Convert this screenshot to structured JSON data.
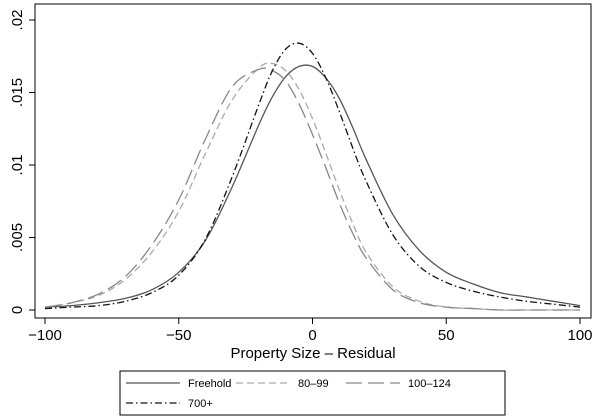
{
  "chart_data": {
    "type": "line",
    "title": "",
    "xlabel": "Property Size – Residual",
    "ylabel": "",
    "xlim": [
      -100,
      100
    ],
    "ylim": [
      0,
      0.02
    ],
    "x_ticks": [
      -100,
      -50,
      0,
      50,
      100
    ],
    "x_tick_labels": [
      "−100",
      "−50",
      "0",
      "50",
      "100"
    ],
    "y_ticks": [
      0,
      0.005,
      0.01,
      0.015,
      0.02
    ],
    "y_tick_labels": [
      "0",
      ".005",
      ".01",
      ".015",
      ".02"
    ],
    "grid": false,
    "legend_position": "bottom",
    "x": [
      -100,
      -90,
      -80,
      -70,
      -60,
      -50,
      -40,
      -30,
      -20,
      -15,
      -10,
      -5,
      0,
      5,
      10,
      15,
      20,
      30,
      40,
      50,
      60,
      70,
      80,
      90,
      100
    ],
    "series": [
      {
        "name": "Freehold",
        "color": "#555555",
        "dash": "solid",
        "values": [
          0.0002,
          0.0003,
          0.0005,
          0.0008,
          0.0014,
          0.0026,
          0.0048,
          0.0085,
          0.0128,
          0.0147,
          0.0161,
          0.0168,
          0.0168,
          0.016,
          0.0146,
          0.0126,
          0.0104,
          0.0066,
          0.0041,
          0.0026,
          0.0018,
          0.0012,
          0.0009,
          0.0006,
          0.0003
        ]
      },
      {
        "name": "80–99",
        "color": "#aaaaaa",
        "dash": "short-dash",
        "values": [
          0.0002,
          0.0005,
          0.001,
          0.0021,
          0.004,
          0.0068,
          0.0108,
          0.0145,
          0.0167,
          0.017,
          0.0165,
          0.0152,
          0.0132,
          0.0108,
          0.0083,
          0.006,
          0.004,
          0.0016,
          0.0006,
          0.0002,
          0.0001,
          0.0,
          0.0,
          0.0,
          0.0
        ]
      },
      {
        "name": "100–124",
        "color": "#888888",
        "dash": "long-dash",
        "values": [
          0.0002,
          0.0005,
          0.0011,
          0.0023,
          0.0045,
          0.0076,
          0.0118,
          0.0154,
          0.0166,
          0.0165,
          0.0158,
          0.0142,
          0.0121,
          0.0098,
          0.0074,
          0.0053,
          0.0036,
          0.0014,
          0.0005,
          0.0002,
          0.0001,
          0.0,
          0.0,
          0.0,
          0.0
        ]
      },
      {
        "name": "700+",
        "color": "#111111",
        "dash": "dash-dot",
        "values": [
          0.0001,
          0.0002,
          0.0003,
          0.0006,
          0.0012,
          0.0024,
          0.0049,
          0.0092,
          0.0142,
          0.0165,
          0.018,
          0.0184,
          0.0177,
          0.016,
          0.0137,
          0.0112,
          0.0089,
          0.0052,
          0.003,
          0.0019,
          0.0013,
          0.0009,
          0.0006,
          0.0004,
          0.0002
        ]
      }
    ]
  }
}
